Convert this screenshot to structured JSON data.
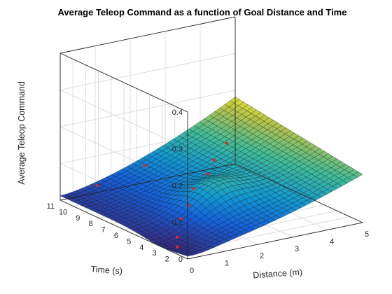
{
  "chart_data": {
    "type": "surface",
    "title": "Average Teleop Command as a function of Goal Distance and Time",
    "xlabel": "Distance (m)",
    "ylabel": "Time (s)",
    "zlabel": "Average Teleop Command",
    "xlim": [
      0,
      5
    ],
    "ylim": [
      1,
      11
    ],
    "zlim": [
      0,
      0.4
    ],
    "x_ticks": [
      "0",
      "1",
      "2",
      "3",
      "4",
      "5"
    ],
    "y_ticks": [
      "2",
      "3",
      "4",
      "5",
      "6",
      "7",
      "8",
      "9",
      "10",
      "11"
    ],
    "z_ticks": [
      "0",
      "0.1",
      "0.2",
      "0.3",
      "0.4"
    ],
    "grid": true,
    "colormap": "parula",
    "sample_points": [
      {
        "x": 0.25,
        "y": 2.5,
        "z": 0.0
      },
      {
        "x": 0.5,
        "y": 3.2,
        "z": 0.01
      },
      {
        "x": 0.9,
        "y": 4.0,
        "z": 0.04
      },
      {
        "x": 1.3,
        "y": 4.5,
        "z": 0.06
      },
      {
        "x": 1.8,
        "y": 5.5,
        "z": 0.08
      },
      {
        "x": 2.4,
        "y": 6.0,
        "z": 0.1
      },
      {
        "x": 2.8,
        "y": 6.6,
        "z": 0.12
      },
      {
        "x": 3.3,
        "y": 7.0,
        "z": 0.15
      },
      {
        "x": 1.5,
        "y": 8.5,
        "z": 0.1
      },
      {
        "x": 0.5,
        "y": 9.5,
        "z": 0.05
      }
    ]
  }
}
